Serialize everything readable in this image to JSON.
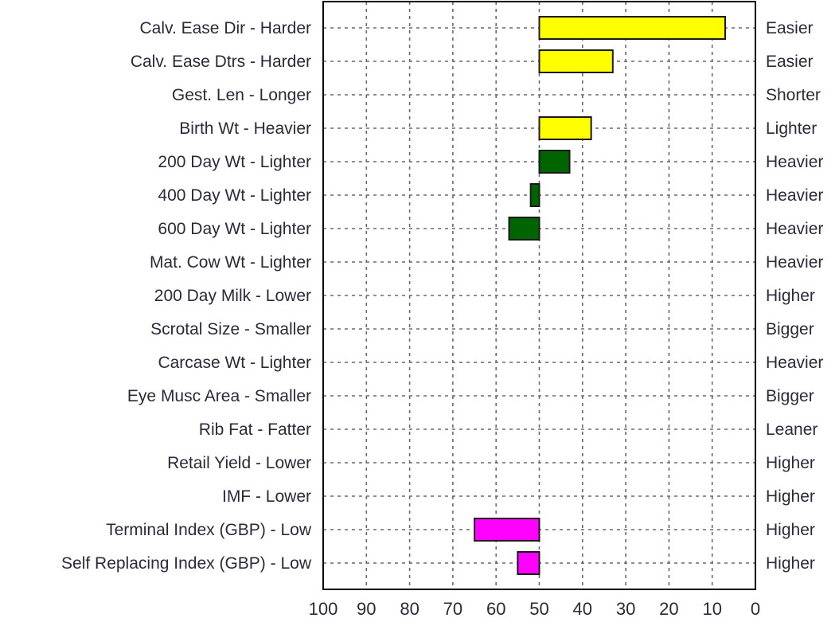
{
  "chart_data": {
    "type": "bar",
    "orientation": "horizontal",
    "xlim": [
      100,
      0
    ],
    "baseline": 50,
    "grid": true,
    "x_ticks": [
      "100",
      "90",
      "80",
      "70",
      "60",
      "50",
      "40",
      "30",
      "20",
      "10",
      "0"
    ],
    "traits": [
      {
        "left_label": "Calv. Ease Dir - Harder",
        "right_label": "Easier",
        "value": 7,
        "color": "#ffff00"
      },
      {
        "left_label": "Calv. Ease Dtrs - Harder",
        "right_label": "Easier",
        "value": 33,
        "color": "#ffff00"
      },
      {
        "left_label": "Gest. Len - Longer",
        "right_label": "Shorter",
        "value": null,
        "color": null
      },
      {
        "left_label": "Birth Wt - Heavier",
        "right_label": "Lighter",
        "value": 38,
        "color": "#ffff00"
      },
      {
        "left_label": "200 Day Wt - Lighter",
        "right_label": "Heavier",
        "value": 43,
        "color": "#006400"
      },
      {
        "left_label": "400 Day Wt - Lighter",
        "right_label": "Heavier",
        "value": 52,
        "color": "#006400"
      },
      {
        "left_label": "600 Day Wt - Lighter",
        "right_label": "Heavier",
        "value": 57,
        "color": "#006400"
      },
      {
        "left_label": "Mat. Cow Wt - Lighter",
        "right_label": "Heavier",
        "value": null,
        "color": null
      },
      {
        "left_label": "200 Day Milk - Lower",
        "right_label": "Higher",
        "value": null,
        "color": null
      },
      {
        "left_label": "Scrotal Size - Smaller",
        "right_label": "Bigger",
        "value": null,
        "color": null
      },
      {
        "left_label": "Carcase Wt - Lighter",
        "right_label": "Heavier",
        "value": null,
        "color": null
      },
      {
        "left_label": "Eye Musc Area - Smaller",
        "right_label": "Bigger",
        "value": null,
        "color": null
      },
      {
        "left_label": "Rib Fat - Fatter",
        "right_label": "Leaner",
        "value": null,
        "color": null
      },
      {
        "left_label": "Retail Yield - Lower",
        "right_label": "Higher",
        "value": null,
        "color": null
      },
      {
        "left_label": "IMF - Lower",
        "right_label": "Higher",
        "value": null,
        "color": null
      },
      {
        "left_label": "Terminal Index (GBP) - Low",
        "right_label": "Higher",
        "value": 65,
        "color": "#ff00ff"
      },
      {
        "left_label": "Self Replacing Index (GBP) - Low",
        "right_label": "Higher",
        "value": 55,
        "color": "#ff00ff"
      }
    ]
  }
}
